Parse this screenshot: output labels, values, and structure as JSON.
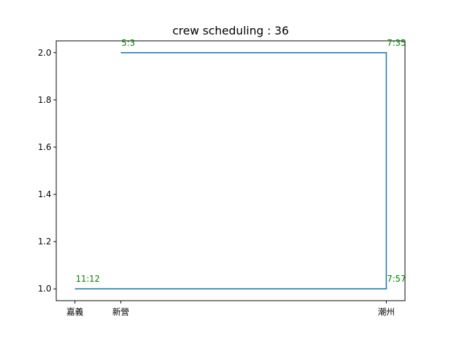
{
  "chart_data": {
    "type": "line",
    "title": "crew scheduling : 36",
    "xlabel": "",
    "ylabel": "",
    "grid": false,
    "legend": "none",
    "xlim": [
      -0.06,
      1.06
    ],
    "ylim": [
      0.95,
      2.05
    ],
    "x_ticks": [
      {
        "value": 0.0,
        "label": "嘉義"
      },
      {
        "value": 0.1473,
        "label": "新營"
      },
      {
        "value": 1.0,
        "label": "潮州"
      }
    ],
    "y_ticks": [
      {
        "value": 1.0,
        "label": "1.0"
      },
      {
        "value": 1.2,
        "label": "1.2"
      },
      {
        "value": 1.4,
        "label": "1.4"
      },
      {
        "value": 1.6,
        "label": "1.6"
      },
      {
        "value": 1.8,
        "label": "1.8"
      },
      {
        "value": 2.0,
        "label": "2.0"
      }
    ],
    "series": [
      {
        "color": "#1f77b4",
        "points": [
          {
            "x": 0.1473,
            "y": 2.0
          },
          {
            "x": 1.0,
            "y": 2.0
          },
          {
            "x": 1.0,
            "y": 1.0
          },
          {
            "x": 0.0,
            "y": 1.0
          }
        ]
      }
    ],
    "annotations": [
      {
        "text": "5:3",
        "x": 0.1473,
        "y": 2.0
      },
      {
        "text": "7:35",
        "x": 1.0,
        "y": 2.0
      },
      {
        "text": "7:57",
        "x": 1.0,
        "y": 1.0
      },
      {
        "text": "11:12",
        "x": 0.0,
        "y": 1.0
      }
    ],
    "annotation_color": "#008000"
  }
}
